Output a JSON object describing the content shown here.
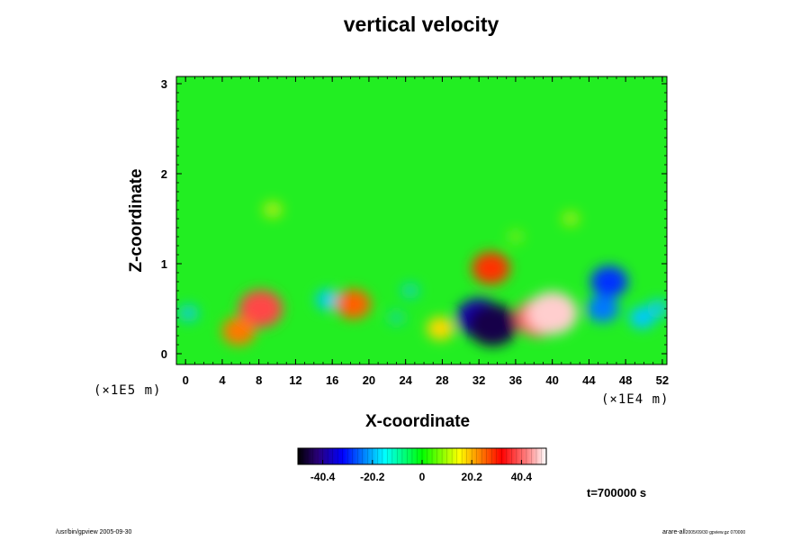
{
  "chart_data": {
    "type": "heatmap",
    "title": "vertical velocity",
    "xlabel": "X-coordinate",
    "ylabel": "Z-coordinate",
    "x_scale_label": "(×1E4 m)",
    "z_scale_label": "(×1E5 m)",
    "x_ticks": [
      "0",
      "4",
      "8",
      "12",
      "16",
      "20",
      "24",
      "28",
      "32",
      "36",
      "40",
      "44",
      "48",
      "52"
    ],
    "y_ticks": [
      "0",
      "1",
      "2",
      "3"
    ],
    "xlim": [
      -1,
      52.5
    ],
    "ylim": [
      -0.12,
      3.08
    ],
    "colorbar": {
      "ticks": [
        "-40.4",
        "-20.2",
        "0",
        "20.2",
        "40.4"
      ],
      "range": [
        -50.5,
        50.5
      ]
    },
    "time_label": "t=700000 s",
    "features": [
      {
        "x": 0.3,
        "z": 0.45,
        "value": -14
      },
      {
        "x": 8.2,
        "z": 0.5,
        "value": 44
      },
      {
        "x": 5.8,
        "z": 0.25,
        "value": 30
      },
      {
        "x": 15.5,
        "z": 0.6,
        "value": -18
      },
      {
        "x": 18.3,
        "z": 0.55,
        "value": 32
      },
      {
        "x": 23,
        "z": 0.4,
        "value": -9
      },
      {
        "x": 24.5,
        "z": 0.7,
        "value": -11
      },
      {
        "x": 27.8,
        "z": 0.28,
        "value": 22
      },
      {
        "x": 32,
        "z": 0.4,
        "value": -46
      },
      {
        "x": 33.5,
        "z": 0.32,
        "value": -52
      },
      {
        "x": 33.3,
        "z": 0.95,
        "value": 36
      },
      {
        "x": 38.5,
        "z": 0.4,
        "value": 46
      },
      {
        "x": 40,
        "z": 0.45,
        "value": 52
      },
      {
        "x": 45.5,
        "z": 0.5,
        "value": -28
      },
      {
        "x": 46.2,
        "z": 0.8,
        "value": -35
      },
      {
        "x": 49.8,
        "z": 0.4,
        "value": -20
      },
      {
        "x": 51.5,
        "z": 0.5,
        "value": -16
      },
      {
        "x": 9.5,
        "z": 1.6,
        "value": 12
      },
      {
        "x": 42,
        "z": 1.5,
        "value": 10
      },
      {
        "x": 36,
        "z": 1.3,
        "value": 7
      }
    ]
  },
  "footer": {
    "left": "/usr/bin/gpview 2005-09-30",
    "right_main": "arare-all",
    "right_sub": "2005/09/30 gpview.gz 070000"
  }
}
